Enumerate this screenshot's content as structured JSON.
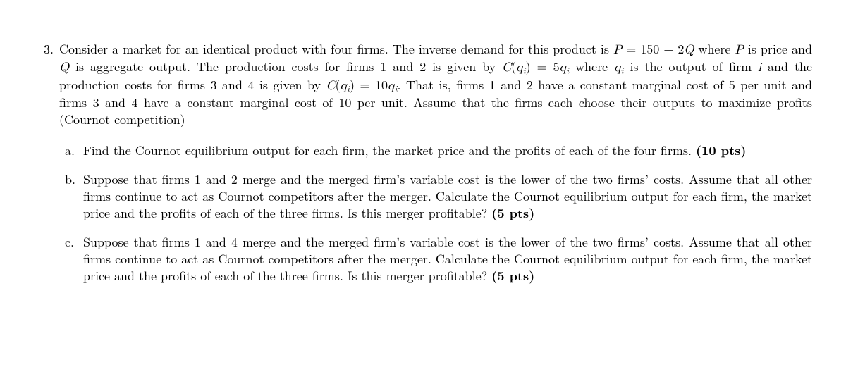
{
  "colors": {
    "background": "#ffffff",
    "text": "#000000"
  },
  "typography": {
    "body_fontsize_pt": 13,
    "line_height": 1.35,
    "family": "Computer Modern / Latin Modern (serif)"
  },
  "problem": {
    "number": "3.",
    "t1": "Consider a market for an identical product with four firms. The inverse demand for this product is ",
    "eq1_lhs": "P",
    "eq1_eq": " = ",
    "eq1_rhs_a": "150",
    "eq1_rhs_op": " − ",
    "eq1_rhs_b": "2",
    "eq1_rhs_v": "Q",
    "t2": " where ",
    "P": "P",
    "t3": " is price and ",
    "Q": "Q",
    "t4": " is aggregate output.  The production costs for firms 1 and 2 is given by ",
    "C": "C",
    "lpar": "(",
    "qi_q": "q",
    "qi_i": "i",
    "rpar": ")",
    "eq": " = ",
    "five": "5",
    "t5": " where ",
    "t6": " is the output of firm ",
    "ivar": "i",
    "t7": " and the production costs for firms 3 and 4 is given by ",
    "ten": "10",
    "t8": ".  That is, firms 1 and 2 have a constant marginal cost of 5 per unit and firms 3 and 4 have a constant marginal cost of 10 per unit. Assume that the firms each choose their outputs to maximize profits (Cournot competition)"
  },
  "subparts": [
    {
      "label": "a.",
      "text": "Find the Cournot equilibrium output for each firm, the market price and the profits of each of the four firms. ",
      "pts": "(10 pts)"
    },
    {
      "label": "b.",
      "text": "Suppose that firms 1 and 2 merge and the merged firm’s variable cost is the lower of the two firms’ costs. Assume that all other firms continue to act as Cournot competitors after the merger. Calculate the Cournot equilibrium output for each firm, the market price and the profits of each of the three firms. Is this merger profitable? ",
      "pts": "(5 pts)"
    },
    {
      "label": "c.",
      "text": "Suppose that firms 1 and 4 merge and the merged firm’s variable cost is the lower of the two firms’ costs. Assume that all other firms continue to act as Cournot competitors after the merger. Calculate the Cournot equilibrium output for each firm, the market price and the profits of each of the three firms. Is this merger profitable? ",
      "pts": "(5 pts)"
    }
  ]
}
